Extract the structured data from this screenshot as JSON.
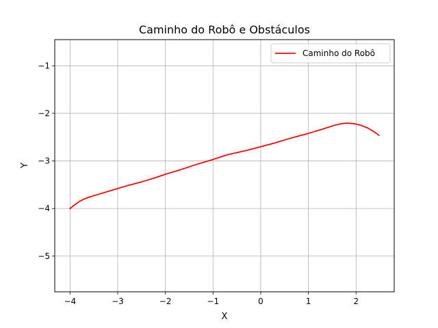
{
  "chart_data": {
    "type": "line",
    "title": "Caminho do Robô e Obstáculos",
    "xlabel": "X",
    "ylabel": "Y",
    "xlim": [
      -4.32,
      2.8
    ],
    "ylim": [
      -5.75,
      -0.45
    ],
    "xticks": [
      -4,
      -3,
      -2,
      -1,
      0,
      1,
      2
    ],
    "yticks": [
      -5,
      -4,
      -3,
      -2,
      -1
    ],
    "grid": true,
    "legend_position": "top-right",
    "series": [
      {
        "name": "Caminho do Robô",
        "color": "#ff0000",
        "x": [
          -4.0,
          -3.9,
          -3.8,
          -3.7,
          -3.6,
          -3.4,
          -3.2,
          -3.0,
          -2.8,
          -2.5,
          -2.2,
          -2.0,
          -1.7,
          -1.4,
          -1.0,
          -0.7,
          -0.3,
          0.0,
          0.3,
          0.6,
          1.0,
          1.3,
          1.55,
          1.7,
          1.8,
          1.95,
          2.1,
          2.25,
          2.4,
          2.48
        ],
        "y": [
          -4.0,
          -3.92,
          -3.85,
          -3.8,
          -3.76,
          -3.7,
          -3.64,
          -3.58,
          -3.52,
          -3.44,
          -3.35,
          -3.28,
          -3.19,
          -3.09,
          -2.97,
          -2.87,
          -2.78,
          -2.7,
          -2.62,
          -2.53,
          -2.42,
          -2.33,
          -2.25,
          -2.215,
          -2.205,
          -2.215,
          -2.25,
          -2.31,
          -2.4,
          -2.46
        ]
      }
    ]
  }
}
